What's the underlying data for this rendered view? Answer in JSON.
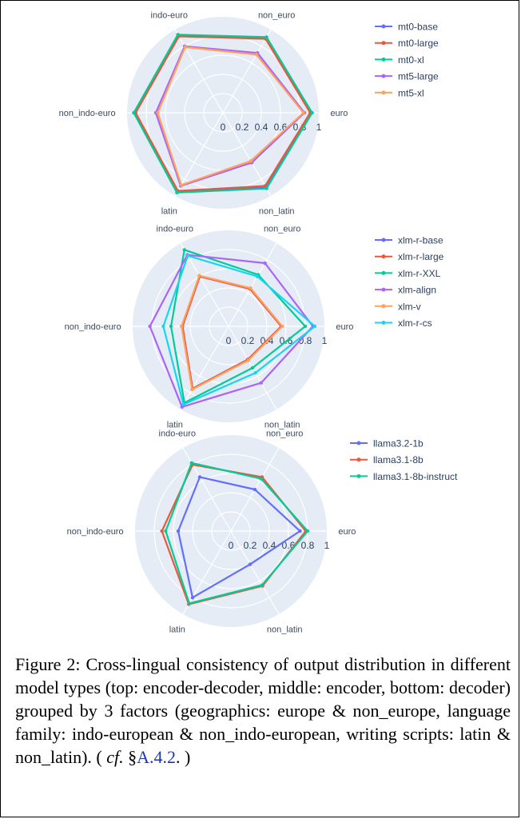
{
  "chart_data": [
    {
      "type": "radar",
      "axes": [
        "euro",
        "non_latin",
        "latin",
        "non_indo-euro",
        "indo-euro",
        "non_euro"
      ],
      "radial_ticks": [
        "0",
        "0.2",
        "0.4",
        "0.6",
        "0.8",
        "1"
      ],
      "range": [
        0,
        1
      ],
      "series": [
        {
          "name": "mt0-base",
          "color": "#636efa",
          "values": [
            0.92,
            0.9,
            0.95,
            0.92,
            0.93,
            0.9
          ]
        },
        {
          "name": "mt0-large",
          "color": "#ef553b",
          "values": [
            0.91,
            0.88,
            0.94,
            0.91,
            0.92,
            0.89
          ]
        },
        {
          "name": "mt0-xl",
          "color": "#00cc96",
          "values": [
            0.93,
            0.91,
            0.96,
            0.93,
            0.94,
            0.91
          ]
        },
        {
          "name": "mt5-large",
          "color": "#ab63fa",
          "values": [
            0.85,
            0.6,
            0.88,
            0.7,
            0.8,
            0.72
          ]
        },
        {
          "name": "mt5-xl",
          "color": "#ffa15a",
          "values": [
            0.84,
            0.58,
            0.87,
            0.68,
            0.79,
            0.7
          ]
        }
      ]
    },
    {
      "type": "radar",
      "axes": [
        "euro",
        "non_latin",
        "latin",
        "non_indo-euro",
        "indo-euro",
        "non_euro"
      ],
      "radial_ticks": [
        "0",
        "0.2",
        "0.4",
        "0.6",
        "0.8",
        "1"
      ],
      "range": [
        0,
        1
      ],
      "series": [
        {
          "name": "xlm-r-base",
          "color": "#636efa",
          "values": [
            0.55,
            0.4,
            0.75,
            0.48,
            0.6,
            0.45
          ]
        },
        {
          "name": "xlm-r-large",
          "color": "#ef553b",
          "values": [
            0.55,
            0.4,
            0.75,
            0.48,
            0.6,
            0.45
          ]
        },
        {
          "name": "xlm-r-XXL",
          "color": "#00cc96",
          "values": [
            0.8,
            0.5,
            0.92,
            0.6,
            0.92,
            0.62
          ]
        },
        {
          "name": "xlm-align",
          "color": "#ab63fa",
          "values": [
            0.88,
            0.68,
            0.97,
            0.82,
            0.86,
            0.76
          ]
        },
        {
          "name": "xlm-v",
          "color": "#ffa15a",
          "values": [
            0.56,
            0.41,
            0.76,
            0.49,
            0.61,
            0.46
          ]
        },
        {
          "name": "xlm-r-cs",
          "color": "#19d3f3",
          "values": [
            0.9,
            0.56,
            0.94,
            0.68,
            0.85,
            0.6
          ]
        }
      ]
    },
    {
      "type": "radar",
      "axes": [
        "euro",
        "non_latin",
        "latin",
        "non_indo-euro",
        "indo-euro",
        "non_euro"
      ],
      "radial_ticks": [
        "0",
        "0.2",
        "0.4",
        "0.6",
        "0.8",
        "1"
      ],
      "range": [
        0,
        1
      ],
      "series": [
        {
          "name": "llama3.2-1b",
          "color": "#636efa",
          "values": [
            0.72,
            0.4,
            0.8,
            0.55,
            0.65,
            0.5
          ]
        },
        {
          "name": "llama3.1-8b",
          "color": "#ef553b",
          "values": [
            0.78,
            0.66,
            0.88,
            0.72,
            0.8,
            0.65
          ]
        },
        {
          "name": "llama3.1-8b-instruct",
          "color": "#00cc96",
          "values": [
            0.8,
            0.65,
            0.87,
            0.68,
            0.82,
            0.63
          ]
        }
      ]
    }
  ],
  "caption": {
    "text": "Figure 2:  Cross-lingual consistency of output distribution in different model types (top: encoder-decoder, middle: encoder, bottom: decoder) grouped by 3 factors (geographics: europe & non_europe, language family: indo-european & non_indo-european, writing scripts: latin & non_latin). ( ",
    "cf": "cf.",
    "section_sign": " §",
    "ref": "A.4.2",
    "tail": ". )"
  }
}
